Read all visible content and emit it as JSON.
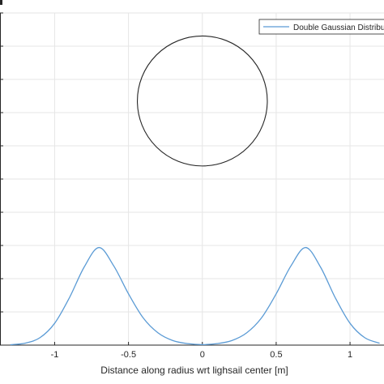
{
  "chart_data": {
    "type": "line",
    "title": "",
    "xlabel": "Distance along radius wrt lighsail center [m]",
    "ylabel": "",
    "xlim": [
      -1.37,
      1.23
    ],
    "ylim": [
      0,
      1.0
    ],
    "grid": true,
    "x_ticks": [
      -1,
      -0.5,
      0,
      0.5,
      1
    ],
    "x_tick_labels": [
      "-1",
      "-0.5",
      "0",
      "0.5",
      "1"
    ],
    "y_grid_lines": [
      0.1,
      0.2,
      0.3,
      0.4,
      0.5,
      0.6,
      0.7,
      0.8,
      0.9,
      1.0
    ],
    "legend": {
      "position": "top-right"
    },
    "series": [
      {
        "name": "Double Gaussian Distribution",
        "color": "#5b9bd5",
        "x": [
          -1.3,
          -1.2,
          -1.1,
          -1.0,
          -0.9,
          -0.8,
          -0.7,
          -0.6,
          -0.5,
          -0.4,
          -0.3,
          -0.2,
          -0.1,
          0.0,
          0.1,
          0.2,
          0.3,
          0.4,
          0.5,
          0.6,
          0.7,
          0.8,
          0.9,
          1.0,
          1.1,
          1.2
        ],
        "y": [
          0.0012,
          0.0058,
          0.0222,
          0.0657,
          0.1427,
          0.2351,
          0.2938,
          0.2386,
          0.1545,
          0.0816,
          0.0368,
          0.0137,
          0.0045,
          0.0016,
          0.0045,
          0.0137,
          0.0368,
          0.0816,
          0.1545,
          0.2386,
          0.2938,
          0.2351,
          0.1427,
          0.0657,
          0.0222,
          0.0058
        ]
      },
      {
        "name": "",
        "color": "#262626",
        "shape": "circle",
        "center": [
          0,
          0.735
        ],
        "radius_x": 0.44
      }
    ]
  }
}
